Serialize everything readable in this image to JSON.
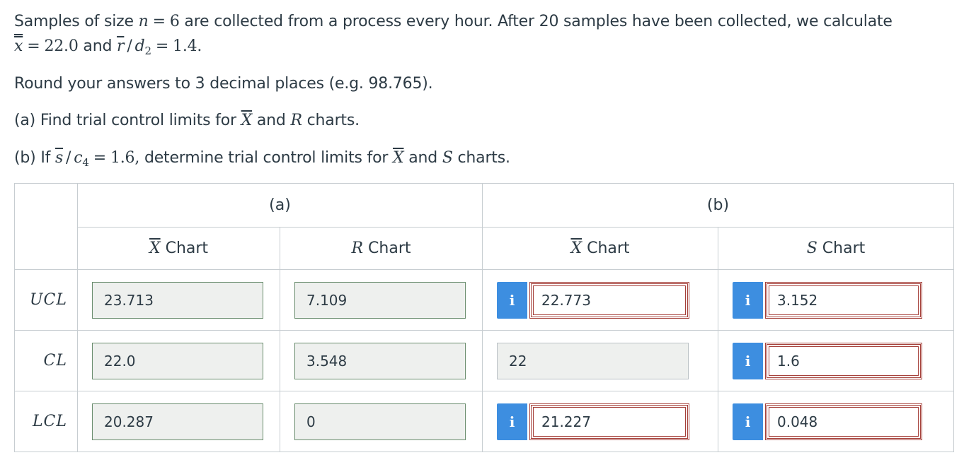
{
  "question": {
    "line1_prefix": "Samples of size ",
    "line1_var_n": "n",
    "line1_eq": "=",
    "line1_n_val": "6",
    "line1_suffix": " are collected from a process every hour. After 20 samples have been collected, we calculate",
    "line2_xbarbar": "x",
    "line2_eq": "=",
    "line2_val1": "22.0",
    "line2_and": " and ",
    "line2_rbar": "r",
    "line2_slash": "/",
    "line2_d": "d",
    "line2_d_sub": "2",
    "line2_eq2": "=",
    "line2_val2": "1.4.",
    "rounding": "Round your answers to 3 decimal places (e.g. 98.765).",
    "part_a_prefix": "(a) Find trial control limits for ",
    "part_a_X": "X",
    "part_a_and": " and ",
    "part_a_R": "R",
    "part_a_suffix": " charts.",
    "part_b_prefix": "(b) If ",
    "part_b_sbar": "s",
    "part_b_slash": "/",
    "part_b_c": "c",
    "part_b_c_sub": "4",
    "part_b_eq": "=",
    "part_b_val": "1.6,",
    "part_b_mid": " determine trial control limits for ",
    "part_b_X": "X",
    "part_b_and": " and ",
    "part_b_S": "S",
    "part_b_suffix": " charts."
  },
  "table": {
    "group_a": "(a)",
    "group_b": "(b)",
    "col_xbar_a_var": "X",
    "col_xbar_a_label": " Chart",
    "col_r_var": "R",
    "col_r_label": " Chart",
    "col_xbar_b_var": "X",
    "col_xbar_b_label": " Chart",
    "col_s_var": "S",
    "col_s_label": " Chart",
    "info_glyph": "i",
    "rows": [
      {
        "label": "UCL",
        "xbar_a": "23.713",
        "r": "7.109",
        "xbar_b": "22.773",
        "s": "3.152"
      },
      {
        "label": "CL",
        "xbar_a": "22.0",
        "r": "3.548",
        "xbar_b": "22",
        "s": "1.6"
      },
      {
        "label": "LCL",
        "xbar_a": "20.287",
        "r": "0",
        "xbar_b": "21.227",
        "s": "0.048"
      }
    ]
  },
  "colors": {
    "info_button": "#3d8ee0",
    "incorrect_border": "#a5403a",
    "correct_border": "#6a8d6e"
  }
}
